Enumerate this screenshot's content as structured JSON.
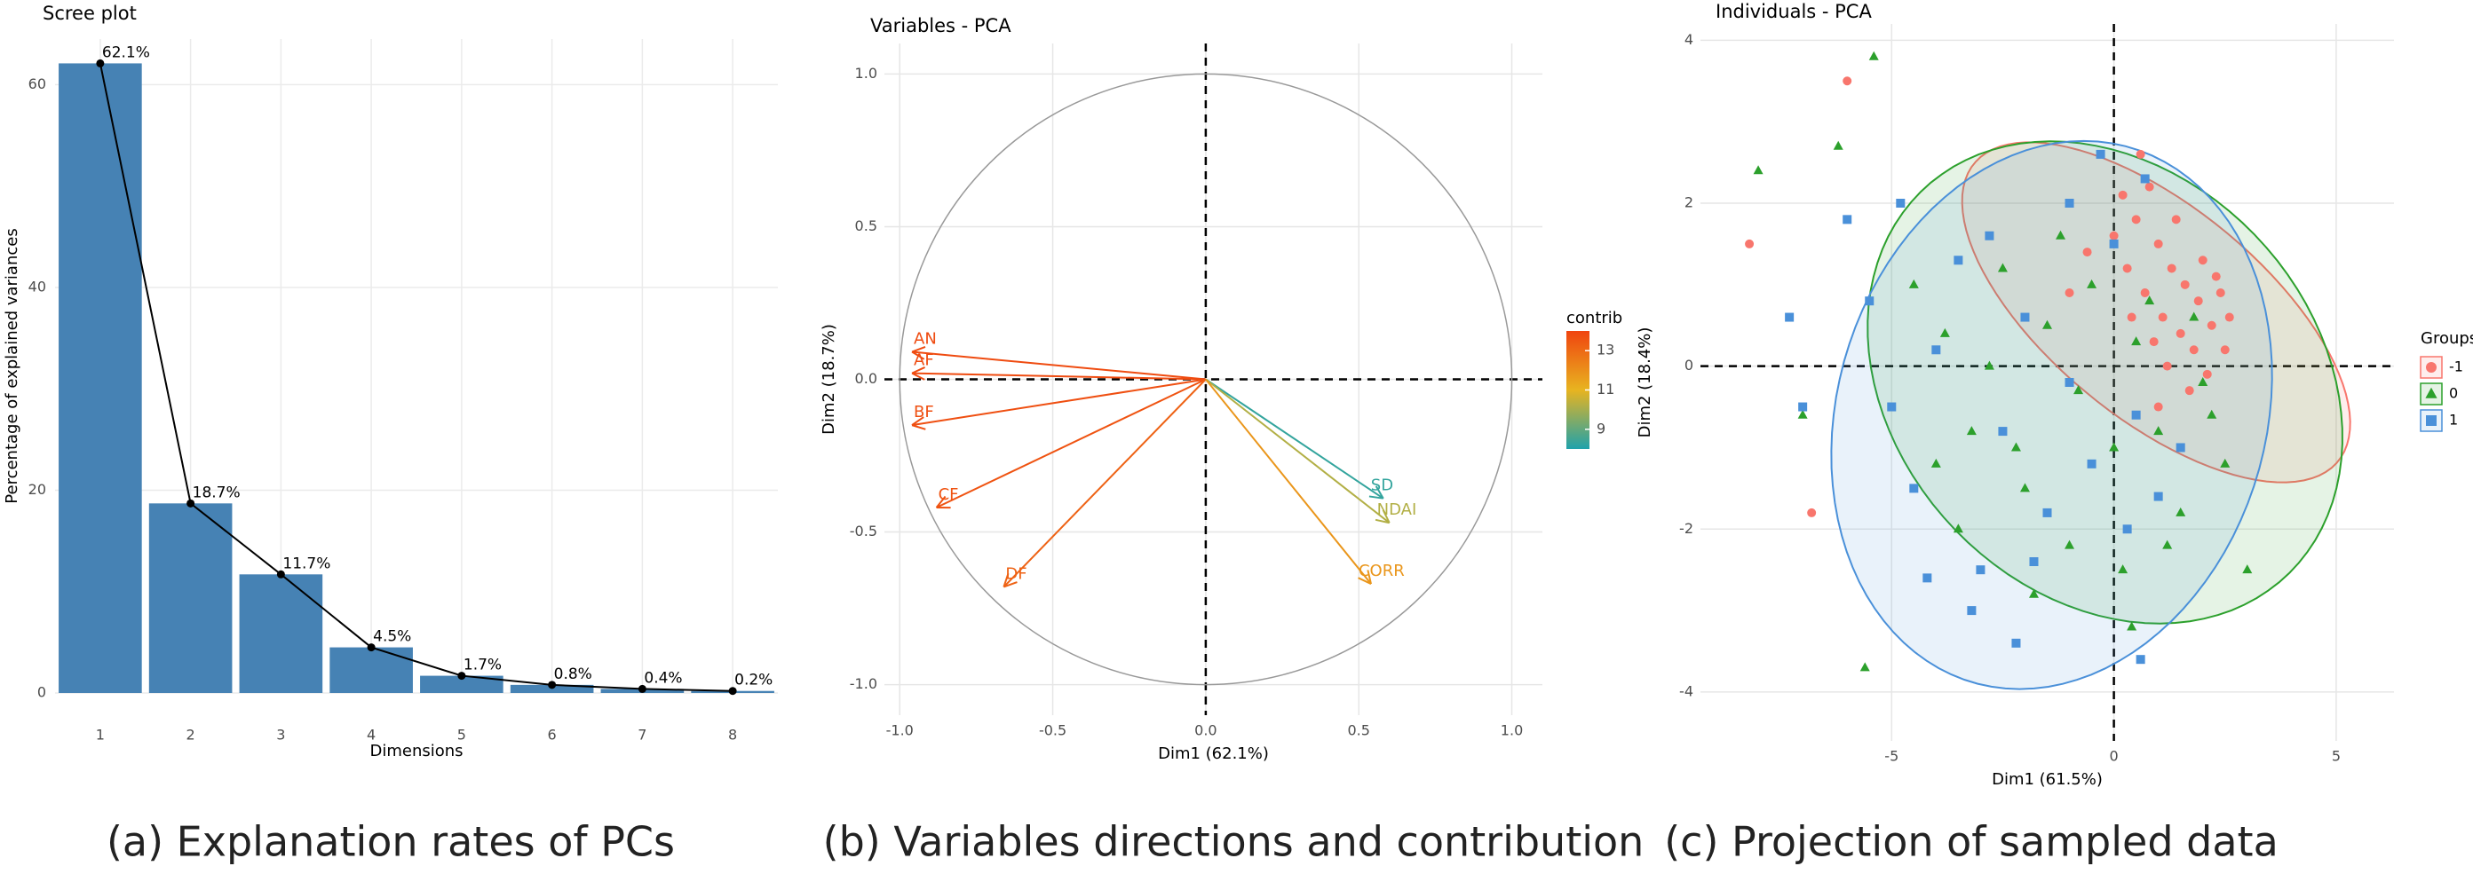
{
  "chart_data": [
    {
      "type": "bar",
      "title": "Scree plot",
      "caption": "(a) Explanation rates of PCs",
      "x_label": "Dimensions",
      "y_label": "Percentage of explained variances",
      "categories": [
        "1",
        "2",
        "3",
        "4",
        "5",
        "6",
        "7",
        "8"
      ],
      "values": [
        62.1,
        18.7,
        11.7,
        4.5,
        1.7,
        0.8,
        0.4,
        0.2
      ],
      "value_labels": [
        "62.1%",
        "18.7%",
        "11.7%",
        "4.5%",
        "1.7%",
        "0.8%",
        "0.4%",
        "0.2%"
      ],
      "color": "#4682b4",
      "line": true,
      "line_color": "#000000",
      "ylim": [
        0,
        64.5
      ],
      "yticks": [
        0,
        20,
        40,
        60
      ],
      "grid": true
    },
    {
      "type": "arrows",
      "title": "Variables - PCA",
      "caption": "(b) Variables directions and contribution",
      "x_label": "Dim1 (62.1%)",
      "y_label": "Dim2 (18.7%)",
      "labels": [
        "AN",
        "AF",
        "BF",
        "CF",
        "DF",
        "SD",
        "NDAI",
        "CORR"
      ],
      "x": [
        -0.96,
        -0.96,
        -0.96,
        -0.88,
        -0.66,
        0.58,
        0.6,
        0.54
      ],
      "y": [
        0.09,
        0.02,
        -0.15,
        -0.42,
        -0.68,
        -0.39,
        -0.47,
        -0.67
      ],
      "contrib": [
        13.8,
        13.8,
        13.7,
        13.6,
        13.2,
        8.3,
        10.2,
        11.8
      ],
      "colorbar": {
        "title": "contrib",
        "lim": [
          8,
          14
        ],
        "ticks": [
          9,
          11,
          13
        ],
        "colors": [
          "#1fa2ab",
          "#e8b420",
          "#f0440f"
        ]
      },
      "xlim": [
        -1.05,
        1.1
      ],
      "ylim": [
        -1.1,
        1.1
      ],
      "xticks": [
        {
          "value": -1,
          "label": "-1.0"
        },
        -0.5,
        {
          "value": 0,
          "label": "0.0"
        },
        0.5,
        {
          "value": 1,
          "label": "1.0"
        }
      ],
      "yticks": [
        {
          "value": -1,
          "label": "-1.0"
        },
        -0.5,
        {
          "value": 0,
          "label": "0.0"
        },
        0.5,
        {
          "value": 1,
          "label": "1.0"
        }
      ],
      "grid": true,
      "zero_lines": true
    },
    {
      "type": "scatter",
      "title": "Individuals - PCA",
      "caption": "(c) Projection of sampled data",
      "x_label": "Dim1 (61.5%)",
      "y_label": "Dim2 (18.4%)",
      "legend_title": "Groups",
      "legend": "right",
      "xlim": [
        -9.3,
        6.3
      ],
      "ylim": [
        -4.6,
        4.2
      ],
      "xticks": [
        -5,
        0,
        5
      ],
      "yticks": [
        -4,
        -2,
        0,
        2,
        4
      ],
      "grid": true,
      "zero_lines": true,
      "series": [
        {
          "name": "-1",
          "color": "#f8766d",
          "marker": "circle",
          "x": [
            0.2,
            0.5,
            0.8,
            1.0,
            1.3,
            1.6,
            1.9,
            2.2,
            2.5,
            0.3,
            0.7,
            1.1,
            1.5,
            1.8,
            2.1,
            2.4,
            2.0,
            1.4,
            0.9,
            0.4,
            1.2,
            1.7,
            2.6,
            0.0,
            -0.6,
            -1.0,
            0.6,
            2.3,
            1.0,
            -8.2,
            -6.0,
            -6.8
          ],
          "y": [
            2.1,
            1.8,
            2.2,
            1.5,
            1.2,
            1.0,
            0.8,
            0.5,
            0.2,
            1.2,
            0.9,
            0.6,
            0.4,
            0.2,
            -0.1,
            0.9,
            1.3,
            1.8,
            0.3,
            0.6,
            0.0,
            -0.3,
            0.6,
            1.6,
            1.4,
            0.9,
            2.6,
            1.1,
            -0.5,
            1.5,
            3.5,
            -1.8
          ],
          "ellipse": {
            "center": [
              0.95,
              0.66
            ],
            "axes": [
              4.6,
              1.5
            ],
            "angle": -19.5
          }
        },
        {
          "name": "0",
          "color": "#2ca02c",
          "marker": "triangle",
          "x": [
            -4.5,
            -3.8,
            -3.2,
            -2.5,
            -2.0,
            -1.5,
            -1.0,
            -0.5,
            0.0,
            0.5,
            1.0,
            1.5,
            2.0,
            2.5,
            3.0,
            -3.5,
            -1.8,
            0.2,
            1.2,
            0.8,
            -0.8,
            -2.8,
            1.8,
            -4.0,
            0.4,
            -1.2,
            2.2,
            -2.2,
            -8.0,
            -5.4,
            -6.2,
            -5.6,
            -7.0
          ],
          "y": [
            1.0,
            0.4,
            -0.8,
            1.2,
            -1.5,
            0.5,
            -2.2,
            1.0,
            -1.0,
            0.3,
            -0.8,
            -1.8,
            -0.2,
            -1.2,
            -2.5,
            -2.0,
            -2.8,
            -2.5,
            -2.2,
            0.8,
            -0.3,
            0.0,
            0.6,
            -1.2,
            -3.2,
            1.6,
            -0.6,
            -1.0,
            2.4,
            3.8,
            2.7,
            -3.7,
            -0.6
          ],
          "ellipse": {
            "center": [
              -0.2,
              -0.2
            ],
            "axes": [
              5.4,
              2.85
            ],
            "angle": -10
          }
        },
        {
          "name": "1",
          "color": "#4a90d9",
          "marker": "square",
          "x": [
            -6.0,
            -5.5,
            -5.0,
            -4.5,
            -4.0,
            -3.5,
            -3.0,
            -2.5,
            -2.0,
            -1.5,
            -1.0,
            -0.5,
            0.0,
            0.5,
            1.0,
            1.5,
            -3.2,
            -2.2,
            -0.3,
            -1.0,
            -4.8,
            -2.8,
            0.3,
            -1.8,
            -4.2,
            0.7,
            -7.3,
            -7.0,
            0.6
          ],
          "y": [
            1.8,
            0.8,
            -0.5,
            -1.5,
            0.2,
            1.3,
            -2.5,
            -0.8,
            0.6,
            -1.8,
            -0.2,
            -1.2,
            1.5,
            -0.6,
            -1.6,
            -1.0,
            -3.0,
            -3.4,
            2.6,
            2.0,
            2.0,
            1.6,
            -2.0,
            -2.4,
            -2.6,
            2.3,
            0.6,
            -0.5,
            -3.6
          ],
          "ellipse": {
            "center": [
              -1.4,
              -0.6
            ],
            "axes": [
              5.0,
              3.3
            ],
            "angle": 10
          }
        }
      ]
    }
  ]
}
